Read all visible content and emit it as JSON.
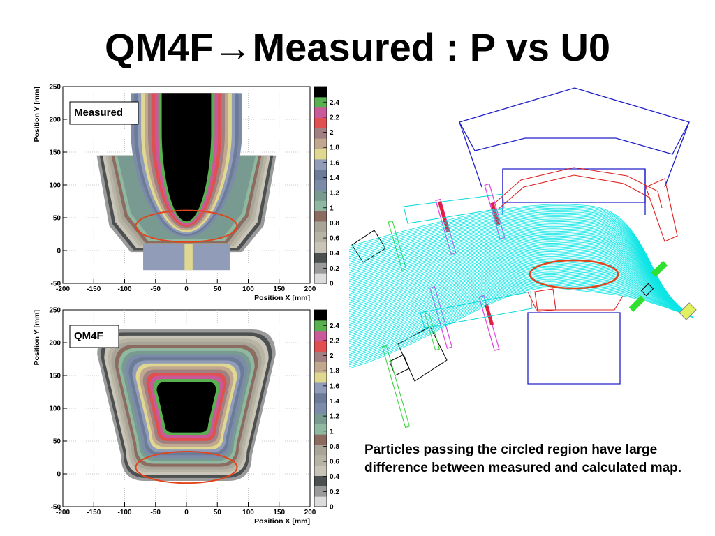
{
  "slide": {
    "title": "QM4F→Measured : P vs U0",
    "caption": "Particles passing the circled region have large difference between measured and calculated map."
  },
  "colors": {
    "accent_circle": "#e2451c",
    "tracks": "#00e4e4",
    "magnet_outline": "#2020c8",
    "chamber_outline": "#e02020"
  },
  "chart_data": [
    {
      "type": "heatmap",
      "label": "Measured",
      "xlabel": "Position X [mm]",
      "ylabel": "Position Y [mm]",
      "xlim": [
        -200,
        200
      ],
      "ylim": [
        -50,
        250
      ],
      "xticks": [
        "-200",
        "-150",
        "-100",
        "-50",
        "0",
        "50",
        "100",
        "150",
        "200"
      ],
      "yticks": [
        "-50",
        "0",
        "50",
        "100",
        "150",
        "200",
        "250"
      ],
      "colorbar": {
        "min": 0,
        "max": 2.4,
        "labels": [
          "0",
          "0.2",
          "0.4",
          "0.6",
          "0.8",
          "1",
          "1.2",
          "1.4",
          "1.6",
          "1.8",
          "2",
          "2.2",
          "2.4"
        ]
      },
      "grid": true,
      "highlight_ellipse": {
        "cx": 0,
        "cy": 37,
        "rx": 82,
        "ry": 24
      }
    },
    {
      "type": "heatmap",
      "label": "QM4F",
      "xlabel": "Position X [mm]",
      "ylabel": "Position Y [mm]",
      "xlim": [
        -200,
        200
      ],
      "ylim": [
        -50,
        250
      ],
      "xticks": [
        "-200",
        "-150",
        "-100",
        "-50",
        "0",
        "50",
        "100",
        "150",
        "200"
      ],
      "yticks": [
        "-50",
        "0",
        "50",
        "100",
        "150",
        "200",
        "250"
      ],
      "colorbar": {
        "min": 0,
        "max": 2.4,
        "labels": [
          "0",
          "0.2",
          "0.4",
          "0.6",
          "0.8",
          "1",
          "1.2",
          "1.4",
          "1.6",
          "1.8",
          "2",
          "2.2",
          "2.4"
        ]
      },
      "grid": true,
      "highlight_ellipse": {
        "cx": 0,
        "cy": 10,
        "rx": 82,
        "ry": 24
      }
    }
  ],
  "diagram": {
    "description_hidden": ""
  }
}
